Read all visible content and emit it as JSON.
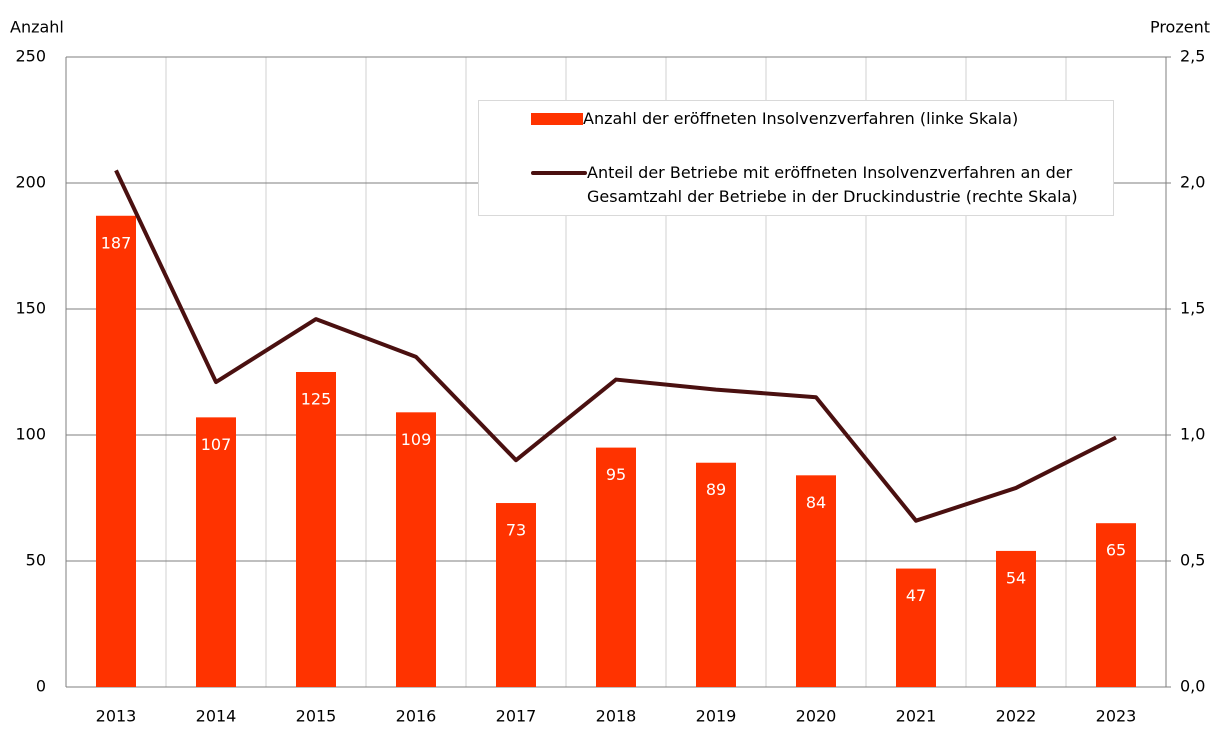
{
  "chart_data": {
    "type": "bar_line",
    "y_label": "Anzahl",
    "y2_label": "Prozent",
    "categories": [
      "2013",
      "2014",
      "2015",
      "2016",
      "2017",
      "2018",
      "2019",
      "2020",
      "2021",
      "2022",
      "2023"
    ],
    "series": [
      {
        "name": "Anzahl der eröffneten Insolvenzverfahren (linke Skala)",
        "type": "bar",
        "color": "#ff3300",
        "values": [
          187,
          107,
          125,
          109,
          73,
          95,
          89,
          84,
          47,
          54,
          65
        ]
      },
      {
        "name": "Anteil der Betriebe mit eröffneten Insolvenzverfahren an der Gesamtzahl der Betriebe in der Druckindustrie (rechte Skala)",
        "type": "line",
        "axis": "y2",
        "color": "#4a1010",
        "values": [
          2.05,
          1.21,
          1.46,
          1.31,
          0.9,
          1.22,
          1.18,
          1.15,
          0.66,
          0.79,
          0.99
        ]
      }
    ],
    "ylim": [
      0,
      250
    ],
    "yticks": [
      0,
      50,
      100,
      150,
      200,
      250
    ],
    "y2lim": [
      0,
      2.5
    ],
    "y2ticks": [
      {
        "value": 0,
        "label": "0,0"
      },
      {
        "value": 0.5,
        "label": "0,5"
      },
      {
        "value": 1,
        "label": "1,0"
      },
      {
        "value": 1.5,
        "label": "1,5"
      },
      {
        "value": 2,
        "label": "2,0"
      },
      {
        "value": 2.5,
        "label": "2,5"
      }
    ],
    "grid": true,
    "legend": "upper right"
  }
}
